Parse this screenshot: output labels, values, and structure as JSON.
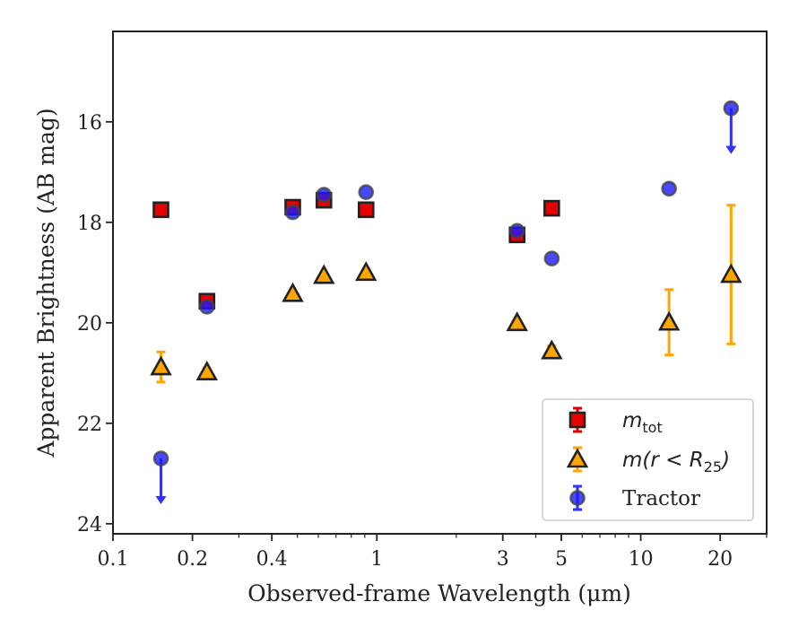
{
  "chart_data": {
    "type": "scatter",
    "xlabel": "Observed-frame Wavelength (μm)",
    "ylabel": "Apparent Brightness (AB mag)",
    "xscale": "log",
    "xlim": [
      0.1,
      30
    ],
    "ylim": [
      24.2,
      14.2
    ],
    "y_inverted": true,
    "xticks": [
      {
        "value": 0.1,
        "label": "0.1"
      },
      {
        "value": 0.2,
        "label": "0.2"
      },
      {
        "value": 0.4,
        "label": "0.4"
      },
      {
        "value": 1,
        "label": "1"
      },
      {
        "value": 3,
        "label": "3"
      },
      {
        "value": 5,
        "label": "5"
      },
      {
        "value": 10,
        "label": "10"
      },
      {
        "value": 20,
        "label": "20"
      }
    ],
    "yticks": [
      {
        "value": 16,
        "label": "16"
      },
      {
        "value": 18,
        "label": "18"
      },
      {
        "value": 20,
        "label": "20"
      },
      {
        "value": 22,
        "label": "22"
      },
      {
        "value": 24,
        "label": "24"
      }
    ],
    "legend_position": "lower-right",
    "series": [
      {
        "name": "m_tot",
        "legend_label": "m",
        "legend_sub": "tot",
        "marker": "square",
        "color": "#e60000",
        "errcolor": "#e60000",
        "points": [
          {
            "x": 0.152,
            "y": 17.75,
            "err": 0
          },
          {
            "x": 0.227,
            "y": 19.57,
            "err": 0.05
          },
          {
            "x": 0.48,
            "y": 17.7,
            "err": 0.05
          },
          {
            "x": 0.63,
            "y": 17.56,
            "err": 0.05
          },
          {
            "x": 0.91,
            "y": 17.75,
            "err": 0.04
          },
          {
            "x": 3.4,
            "y": 18.25,
            "err": 0.07
          },
          {
            "x": 4.6,
            "y": 17.72,
            "err": 0.04
          }
        ]
      },
      {
        "name": "m(r<R25)",
        "legend_label": "m(r < R",
        "legend_sub": "25",
        "marker": "triangle",
        "color": "#ffa500",
        "errcolor": "#ffa500",
        "points": [
          {
            "x": 0.152,
            "y": 20.88,
            "err": 0.3
          },
          {
            "x": 0.227,
            "y": 20.98,
            "err": 0.05
          },
          {
            "x": 0.48,
            "y": 19.42,
            "err": 0.04
          },
          {
            "x": 0.63,
            "y": 19.06,
            "err": 0.04
          },
          {
            "x": 0.91,
            "y": 19.0,
            "err": 0.04
          },
          {
            "x": 3.4,
            "y": 20.0,
            "err": 0.05
          },
          {
            "x": 4.6,
            "y": 20.56,
            "err": 0.1
          },
          {
            "x": 12.8,
            "y": 19.99,
            "err": 0.65
          },
          {
            "x": 22.0,
            "y": 19.04,
            "err": 1.38
          }
        ]
      },
      {
        "name": "Tractor",
        "legend_label": "Tractor",
        "legend_sub": "",
        "marker": "circle",
        "color": "#1a1aff",
        "errcolor": "#3030ff",
        "points": [
          {
            "x": 0.152,
            "y": 22.7,
            "err": 0,
            "upper_limit": true
          },
          {
            "x": 0.227,
            "y": 19.68,
            "err": 0
          },
          {
            "x": 0.48,
            "y": 17.8,
            "err": 0
          },
          {
            "x": 0.63,
            "y": 17.45,
            "err": 0
          },
          {
            "x": 0.91,
            "y": 17.4,
            "err": 0
          },
          {
            "x": 3.4,
            "y": 18.17,
            "err": 0
          },
          {
            "x": 4.6,
            "y": 18.72,
            "err": 0
          },
          {
            "x": 12.8,
            "y": 17.33,
            "err": 0
          },
          {
            "x": 22.0,
            "y": 15.73,
            "err": 0,
            "upper_limit": true
          }
        ]
      }
    ]
  }
}
